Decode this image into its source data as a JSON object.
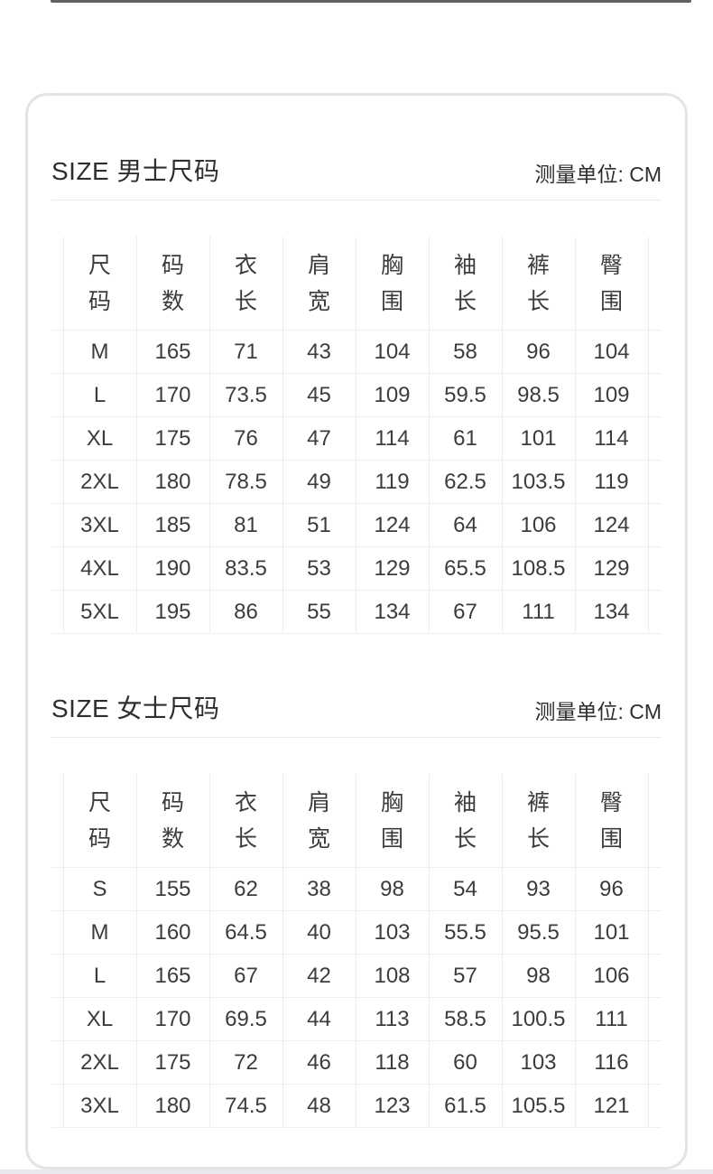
{
  "page": {
    "top_divider_color": "#46464a",
    "card_border_color": "#e3e3e9",
    "grid_line_color": "#ededf1",
    "text_color": "#3c3c40"
  },
  "sections": [
    {
      "id": "men",
      "title": "SIZE 男士尺码",
      "unit": "测量单位: CM",
      "columns": [
        [
          "尺",
          "码"
        ],
        [
          "码",
          "数"
        ],
        [
          "衣",
          "长"
        ],
        [
          "肩",
          "宽"
        ],
        [
          "胸",
          "围"
        ],
        [
          "袖",
          "长"
        ],
        [
          "裤",
          "长"
        ],
        [
          "臀",
          "围"
        ]
      ],
      "rows": [
        [
          "M",
          "165",
          "71",
          "43",
          "104",
          "58",
          "96",
          "104"
        ],
        [
          "L",
          "170",
          "73.5",
          "45",
          "109",
          "59.5",
          "98.5",
          "109"
        ],
        [
          "XL",
          "175",
          "76",
          "47",
          "114",
          "61",
          "101",
          "114"
        ],
        [
          "2XL",
          "180",
          "78.5",
          "49",
          "119",
          "62.5",
          "103.5",
          "119"
        ],
        [
          "3XL",
          "185",
          "81",
          "51",
          "124",
          "64",
          "106",
          "124"
        ],
        [
          "4XL",
          "190",
          "83.5",
          "53",
          "129",
          "65.5",
          "108.5",
          "129"
        ],
        [
          "5XL",
          "195",
          "86",
          "55",
          "134",
          "67",
          "111",
          "134"
        ]
      ]
    },
    {
      "id": "women",
      "title": "SIZE 女士尺码",
      "unit": "测量单位: CM",
      "columns": [
        [
          "尺",
          "码"
        ],
        [
          "码",
          "数"
        ],
        [
          "衣",
          "长"
        ],
        [
          "肩",
          "宽"
        ],
        [
          "胸",
          "围"
        ],
        [
          "袖",
          "长"
        ],
        [
          "裤",
          "长"
        ],
        [
          "臀",
          "围"
        ]
      ],
      "rows": [
        [
          "S",
          "155",
          "62",
          "38",
          "98",
          "54",
          "93",
          "96"
        ],
        [
          "M",
          "160",
          "64.5",
          "40",
          "103",
          "55.5",
          "95.5",
          "101"
        ],
        [
          "L",
          "165",
          "67",
          "42",
          "108",
          "57",
          "98",
          "106"
        ],
        [
          "XL",
          "170",
          "69.5",
          "44",
          "113",
          "58.5",
          "100.5",
          "111"
        ],
        [
          "2XL",
          "175",
          "72",
          "46",
          "118",
          "60",
          "103",
          "116"
        ],
        [
          "3XL",
          "180",
          "74.5",
          "48",
          "123",
          "61.5",
          "105.5",
          "121"
        ]
      ]
    }
  ]
}
